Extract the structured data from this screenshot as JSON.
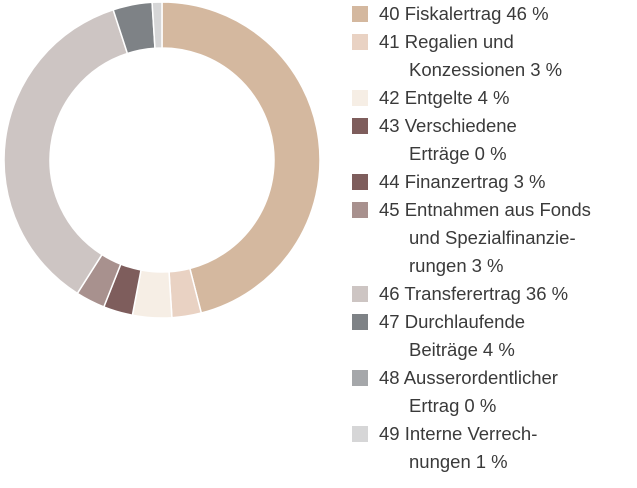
{
  "chart_data": {
    "type": "donut",
    "series": [
      {
        "name": "40 Fiskalertrag",
        "color": "#d4b89f",
        "values": [
          46
        ],
        "value_labels": [
          "46 %"
        ]
      },
      {
        "name": "41 Regalien und\nKonzessionen",
        "color": "#e9d2c3",
        "values": [
          3
        ],
        "value_labels": [
          "3 %"
        ]
      },
      {
        "name": "42 Entgelte",
        "color": "#f6eee5",
        "values": [
          4
        ],
        "value_labels": [
          "4 %"
        ]
      },
      {
        "name": "43 Verschiedene\nErträge",
        "color": "#7e5d5c",
        "values": [
          0
        ],
        "value_labels": [
          "0 %"
        ]
      },
      {
        "name": "44 Finanzertrag",
        "color": "#7e5d5c",
        "values": [
          3
        ],
        "value_labels": [
          "3 %"
        ]
      },
      {
        "name": "45 Entnahmen aus Fonds\nund Spezialfinanzie-\nrungen",
        "color": "#a8918e",
        "values": [
          3
        ],
        "value_labels": [
          "3 %"
        ]
      },
      {
        "name": "46 Transferertrag",
        "color": "#cdc5c3",
        "values": [
          36
        ],
        "value_labels": [
          "36 %"
        ]
      },
      {
        "name": "47 Durchlaufende\nBeiträge",
        "color": "#7e8286",
        "values": [
          4
        ],
        "value_labels": [
          "4 %"
        ]
      },
      {
        "name": "48 Ausserordentlicher\nErtrag",
        "color": "#a5a7aa",
        "values": [
          0
        ],
        "value_labels": [
          "0 %"
        ]
      },
      {
        "name": "49 Interne Verrech-\nnungen",
        "color": "#d6d6d7",
        "values": [
          1
        ],
        "value_labels": [
          "1 %"
        ]
      }
    ]
  }
}
